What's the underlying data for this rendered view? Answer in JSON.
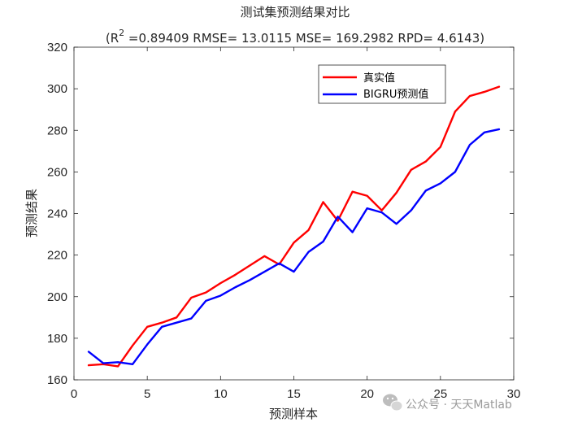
{
  "chart_data": {
    "type": "line",
    "title": "测试集预测结果对比",
    "subtitle": {
      "prefix": "(R",
      "superscript": "2",
      "rest": " =0.89409 RMSE= 13.0115 MSE= 169.2982 RPD= 4.6143)"
    },
    "xlabel": "预测样本",
    "ylabel": "预测结果",
    "xlim": [
      0,
      30
    ],
    "ylim": [
      160,
      320
    ],
    "xticks": [
      0,
      5,
      10,
      15,
      20,
      25,
      30
    ],
    "yticks": [
      160,
      180,
      200,
      220,
      240,
      260,
      280,
      300,
      320
    ],
    "grid": false,
    "legend_position": "top-right",
    "x": [
      1,
      2,
      3,
      4,
      5,
      6,
      7,
      8,
      9,
      10,
      11,
      12,
      13,
      14,
      15,
      16,
      17,
      18,
      19,
      20,
      21,
      22,
      23,
      24,
      25,
      26,
      27,
      28,
      29
    ],
    "series": [
      {
        "name": "真实值",
        "color": "#ff0000",
        "values": [
          167,
          167.5,
          166.5,
          176.5,
          185.5,
          187.5,
          190,
          199.5,
          202,
          206.5,
          210.5,
          215,
          219.5,
          215.5,
          226,
          232,
          245.5,
          236.5,
          250.5,
          248.5,
          241.5,
          250,
          261,
          265,
          272,
          289,
          296.5,
          298.5,
          301
        ]
      },
      {
        "name": "BIGRU预测值",
        "color": "#0000ff",
        "values": [
          173.5,
          168,
          168.5,
          167.5,
          177,
          185.5,
          187.5,
          189.5,
          198,
          200.5,
          204.5,
          208,
          212,
          216,
          212,
          221.5,
          226.5,
          238.5,
          231,
          242.5,
          240.5,
          235,
          241.5,
          251,
          254.5,
          260,
          273,
          279,
          280.5
        ]
      }
    ]
  },
  "watermark": {
    "icon": "wechat-icon",
    "text": "公众号 · 天天Matlab"
  }
}
